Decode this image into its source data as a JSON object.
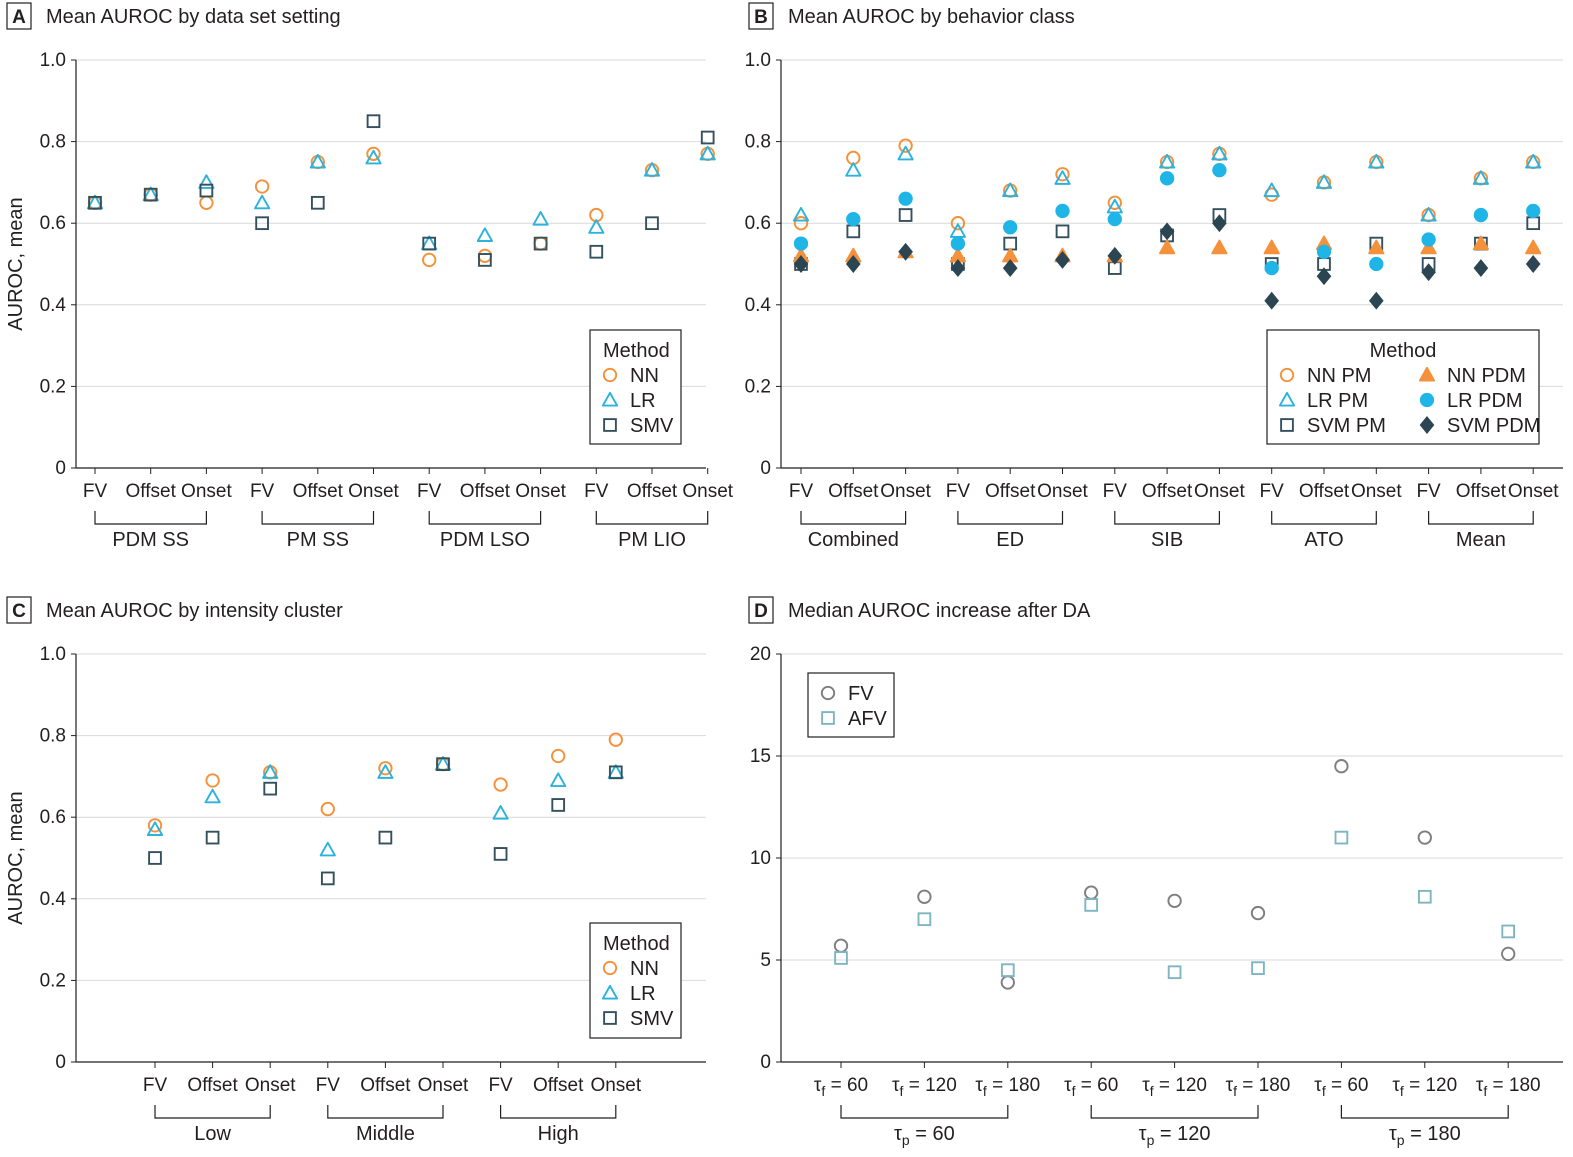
{
  "chart_data": [
    {
      "panel": "A",
      "title": "Mean AUROC by data set setting",
      "type": "scatter",
      "ylabel": "AUROC, mean",
      "ylim": [
        0,
        1.0
      ],
      "yticks": [
        "0",
        "0.2",
        "0.4",
        "0.6",
        "0.8",
        "1.0"
      ],
      "grid": true,
      "categories": [
        "FV",
        "Offset",
        "Onset",
        "FV",
        "Offset",
        "Onset",
        "FV",
        "Offset",
        "Onset",
        "FV",
        "Offset",
        "Onset"
      ],
      "groups": [
        {
          "label": "PDM SS",
          "from": 0,
          "to": 2
        },
        {
          "label": "PM SS",
          "from": 3,
          "to": 5
        },
        {
          "label": "PDM LSO",
          "from": 6,
          "to": 8
        },
        {
          "label": "PM LIO",
          "from": 9,
          "to": 11
        }
      ],
      "legend": {
        "title": "Method",
        "position": "bottom-right"
      },
      "series": [
        {
          "name": "NN",
          "marker": "circle",
          "color": "#f5913a",
          "filled": false,
          "values": [
            0.65,
            0.67,
            0.65,
            0.69,
            0.75,
            0.77,
            0.51,
            0.52,
            0.55,
            0.62,
            0.73,
            0.77
          ]
        },
        {
          "name": "LR",
          "marker": "triangle",
          "color": "#2bb2dd",
          "filled": false,
          "values": [
            0.65,
            0.67,
            0.7,
            0.65,
            0.75,
            0.76,
            0.55,
            0.57,
            0.61,
            0.59,
            0.73,
            0.77
          ]
        },
        {
          "name": "SMV",
          "marker": "square",
          "color": "#34505d",
          "filled": false,
          "values": [
            0.65,
            0.67,
            0.68,
            0.6,
            0.65,
            0.85,
            0.55,
            0.51,
            0.55,
            0.53,
            0.6,
            0.81
          ]
        }
      ]
    },
    {
      "panel": "B",
      "title": "Mean AUROC by behavior class",
      "type": "scatter",
      "ylabel": "",
      "ylim": [
        0,
        1.0
      ],
      "yticks": [
        "0",
        "0.2",
        "0.4",
        "0.6",
        "0.8",
        "1.0"
      ],
      "grid": true,
      "categories": [
        "FV",
        "Offset",
        "Onset",
        "FV",
        "Offset",
        "Onset",
        "FV",
        "Offset",
        "Onset",
        "FV",
        "Offset",
        "Onset",
        "FV",
        "Offset",
        "Onset"
      ],
      "groups": [
        {
          "label": "Combined",
          "from": 0,
          "to": 2
        },
        {
          "label": "ED",
          "from": 3,
          "to": 5
        },
        {
          "label": "SIB",
          "from": 6,
          "to": 8
        },
        {
          "label": "ATO",
          "from": 9,
          "to": 11
        },
        {
          "label": "Mean",
          "from": 12,
          "to": 14
        }
      ],
      "legend": {
        "title": "Method",
        "position": "bottom-right",
        "columns": 2
      },
      "series": [
        {
          "name": "NN PM",
          "marker": "circle",
          "color": "#f5913a",
          "filled": false,
          "values": [
            0.6,
            0.76,
            0.79,
            0.6,
            0.68,
            0.72,
            0.65,
            0.75,
            0.77,
            0.67,
            0.7,
            0.75,
            0.62,
            0.71,
            0.75
          ]
        },
        {
          "name": "LR PM",
          "marker": "triangle",
          "color": "#2bb2dd",
          "filled": false,
          "values": [
            0.62,
            0.73,
            0.77,
            0.58,
            0.68,
            0.71,
            0.64,
            0.75,
            0.77,
            0.68,
            0.7,
            0.75,
            0.62,
            0.71,
            0.75
          ]
        },
        {
          "name": "SVM PM",
          "marker": "square",
          "color": "#34505d",
          "filled": false,
          "values": [
            0.5,
            0.58,
            0.62,
            0.5,
            0.55,
            0.58,
            0.49,
            0.57,
            0.62,
            0.5,
            0.5,
            0.55,
            0.5,
            0.55,
            0.6
          ]
        },
        {
          "name": "NN PDM",
          "marker": "triangle",
          "color": "#f5913a",
          "filled": true,
          "values": [
            0.52,
            0.52,
            0.53,
            0.52,
            0.52,
            0.52,
            0.52,
            0.54,
            0.54,
            0.54,
            0.55,
            0.54,
            0.54,
            0.55,
            0.54
          ]
        },
        {
          "name": "LR PDM",
          "marker": "circle",
          "color": "#1fb5e6",
          "filled": true,
          "values": [
            0.55,
            0.61,
            0.66,
            0.55,
            0.59,
            0.63,
            0.61,
            0.71,
            0.73,
            0.49,
            0.53,
            0.5,
            0.56,
            0.62,
            0.63
          ]
        },
        {
          "name": "SVM PDM",
          "marker": "diamond",
          "color": "#2c4552",
          "filled": true,
          "values": [
            0.5,
            0.5,
            0.53,
            0.49,
            0.49,
            0.51,
            0.52,
            0.58,
            0.6,
            0.41,
            0.47,
            0.41,
            0.48,
            0.49,
            0.5
          ]
        }
      ]
    },
    {
      "panel": "C",
      "title": "Mean AUROC by intensity cluster",
      "type": "scatter",
      "ylabel": "AUROC, mean",
      "ylim": [
        0,
        1.0
      ],
      "yticks": [
        "0",
        "0.2",
        "0.4",
        "0.6",
        "0.8",
        "1.0"
      ],
      "grid": true,
      "categories": [
        "FV",
        "Offset",
        "Onset",
        "FV",
        "Offset",
        "Onset",
        "FV",
        "Offset",
        "Onset"
      ],
      "groups": [
        {
          "label": "Low",
          "from": 0,
          "to": 2
        },
        {
          "label": "Middle",
          "from": 3,
          "to": 5
        },
        {
          "label": "High",
          "from": 6,
          "to": 8
        }
      ],
      "legend": {
        "title": "Method",
        "position": "bottom-right"
      },
      "series": [
        {
          "name": "NN",
          "marker": "circle",
          "color": "#f5913a",
          "filled": false,
          "values": [
            0.58,
            0.69,
            0.71,
            0.62,
            0.72,
            0.73,
            0.68,
            0.75,
            0.79
          ]
        },
        {
          "name": "LR",
          "marker": "triangle",
          "color": "#2bb2dd",
          "filled": false,
          "values": [
            0.57,
            0.65,
            0.71,
            0.52,
            0.71,
            0.73,
            0.61,
            0.69,
            0.71
          ]
        },
        {
          "name": "SMV",
          "marker": "square",
          "color": "#34505d",
          "filled": false,
          "values": [
            0.5,
            0.55,
            0.67,
            0.45,
            0.55,
            0.73,
            0.51,
            0.63,
            0.71
          ]
        }
      ]
    },
    {
      "panel": "D",
      "title": "Median AUROC increase after DA",
      "type": "scatter",
      "ylabel": "",
      "ylim": [
        0,
        20
      ],
      "yticks": [
        "0",
        "5",
        "10",
        "15",
        "20"
      ],
      "grid": true,
      "categories": [
        "τf = 60",
        "τf = 120",
        "τf = 180",
        "τf = 60",
        "τf = 120",
        "τf = 180",
        "τf = 60",
        "τf = 120",
        "τf = 180"
      ],
      "groups": [
        {
          "label": "τp = 60",
          "from": 0,
          "to": 2
        },
        {
          "label": "τp = 120",
          "from": 3,
          "to": 5
        },
        {
          "label": "τp = 180",
          "from": 6,
          "to": 8
        }
      ],
      "legend": {
        "title": "",
        "position": "top-left"
      },
      "series": [
        {
          "name": "FV",
          "marker": "circle",
          "color": "#7f7f7f",
          "filled": false,
          "values": [
            5.7,
            8.1,
            3.9,
            8.3,
            7.9,
            7.3,
            14.5,
            11.0,
            5.3
          ]
        },
        {
          "name": "AFV",
          "marker": "square",
          "color": "#7fb4c2",
          "filled": false,
          "values": [
            5.1,
            7.0,
            4.5,
            7.7,
            4.4,
            4.6,
            11.0,
            8.1,
            6.4
          ]
        }
      ]
    }
  ]
}
